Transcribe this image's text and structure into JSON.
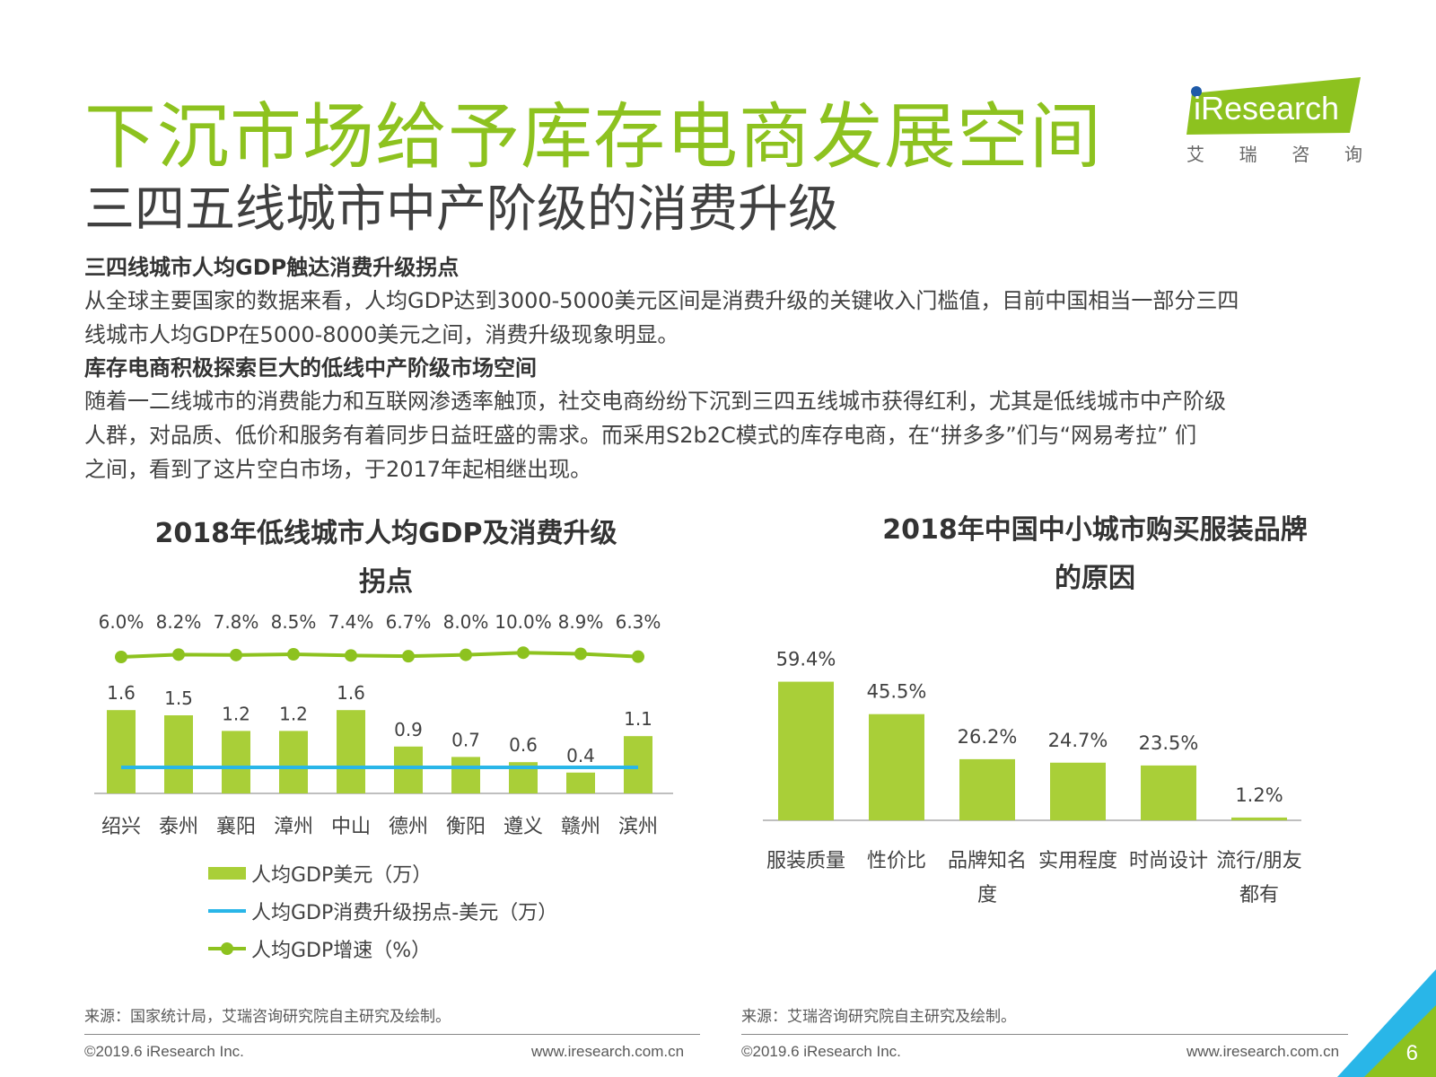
{
  "page": {
    "title": "下沉市场给予库存电商发展空间",
    "subtitle": "三四五线城市中产阶级的消费升级",
    "page_number": "6"
  },
  "logo": {
    "name": "iResearch",
    "chinese": [
      "艾",
      "瑞",
      "咨",
      "询"
    ]
  },
  "intro": {
    "heading1": "三四线城市人均GDP触达消费升级拐点",
    "para1_line1": "从全球主要国家的数据来看，人均GDP达到3000-5000美元区间是消费升级的关键收入门槛值，目前中国相当一部分三四",
    "para1_line2": "线城市人均GDP在5000-8000美元之间，消费升级现象明显。",
    "heading2": "库存电商积极探索巨大的低线中产阶级市场空间",
    "para2_line1": "随着一二线城市的消费能力和互联网渗透率触顶，社交电商纷纷下沉到三四五线城市获得红利，尤其是低线城市中产阶级",
    "para2_line2": "人群，对品质、低价和服务有着同步日益旺盛的需求。而采用S2b2C模式的库存电商，在“拼多多”们与“网易考拉” 们",
    "para2_line3": "之间，看到了这片空白市场，于2017年起相继出现。"
  },
  "chart_data": [
    {
      "type": "bar",
      "title_line1": "2018年低线城市人均GDP及消费升级",
      "title_line2": "拐点",
      "categories": [
        "绍兴",
        "泰州",
        "襄阳",
        "漳州",
        "中山",
        "德州",
        "衡阳",
        "遵义",
        "赣州",
        "滨州"
      ],
      "series": [
        {
          "name": "人均GDP美元（万）",
          "type": "bar",
          "values": [
            1.6,
            1.5,
            1.2,
            1.2,
            1.6,
            0.9,
            0.7,
            0.6,
            0.4,
            1.1
          ],
          "labels": [
            "1.6",
            "1.5",
            "1.2",
            "1.2",
            "1.6",
            "0.9",
            "0.7",
            "0.6",
            "0.4",
            "1.1"
          ]
        },
        {
          "name": "人均GDP消费升级拐点-美元（万）",
          "type": "line",
          "values": [
            0.5,
            0.5,
            0.5,
            0.5,
            0.5,
            0.5,
            0.5,
            0.5,
            0.5,
            0.5
          ]
        },
        {
          "name": "人均GDP增速（%）",
          "type": "line",
          "values": [
            6.0,
            8.2,
            7.8,
            8.5,
            7.4,
            6.7,
            8.0,
            10.0,
            8.9,
            6.3
          ],
          "labels": [
            "6.0%",
            "8.2%",
            "7.8%",
            "8.5%",
            "7.4%",
            "6.7%",
            "8.0%",
            "10.0%",
            "8.9%",
            "6.3%"
          ]
        }
      ],
      "legend_position": "bottom",
      "colors": {
        "bar": "#a9cf38",
        "threshold": "#29b6e8",
        "growth": "#8dc21f"
      }
    },
    {
      "type": "bar",
      "title_line1": "2018年中国中小城市购买服装品牌",
      "title_line2": "的原因",
      "categories": [
        [
          "服装质量"
        ],
        [
          "性价比"
        ],
        [
          "品牌知名",
          "度"
        ],
        [
          "实用程度"
        ],
        [
          "时尚设计"
        ],
        [
          "流行/朋友",
          "都有"
        ]
      ],
      "values": [
        59.4,
        45.5,
        26.2,
        24.7,
        23.5,
        1.2
      ],
      "labels": [
        "59.4%",
        "45.5%",
        "26.2%",
        "24.7%",
        "23.5%",
        "1.2%"
      ],
      "colors": {
        "bar": "#a9cf38"
      }
    }
  ],
  "sources": {
    "left": "来源：国家统计局，艾瑞咨询研究院自主研究及绘制。",
    "right": "来源：艾瑞咨询研究院自主研究及绘制。"
  },
  "footer": {
    "copyright_left": "©2019.6 iResearch Inc.",
    "url_left": "www.iresearch.com.cn",
    "copyright_right": "©2019.6 iResearch Inc.",
    "url_right": "www.iresearch.com.cn"
  }
}
